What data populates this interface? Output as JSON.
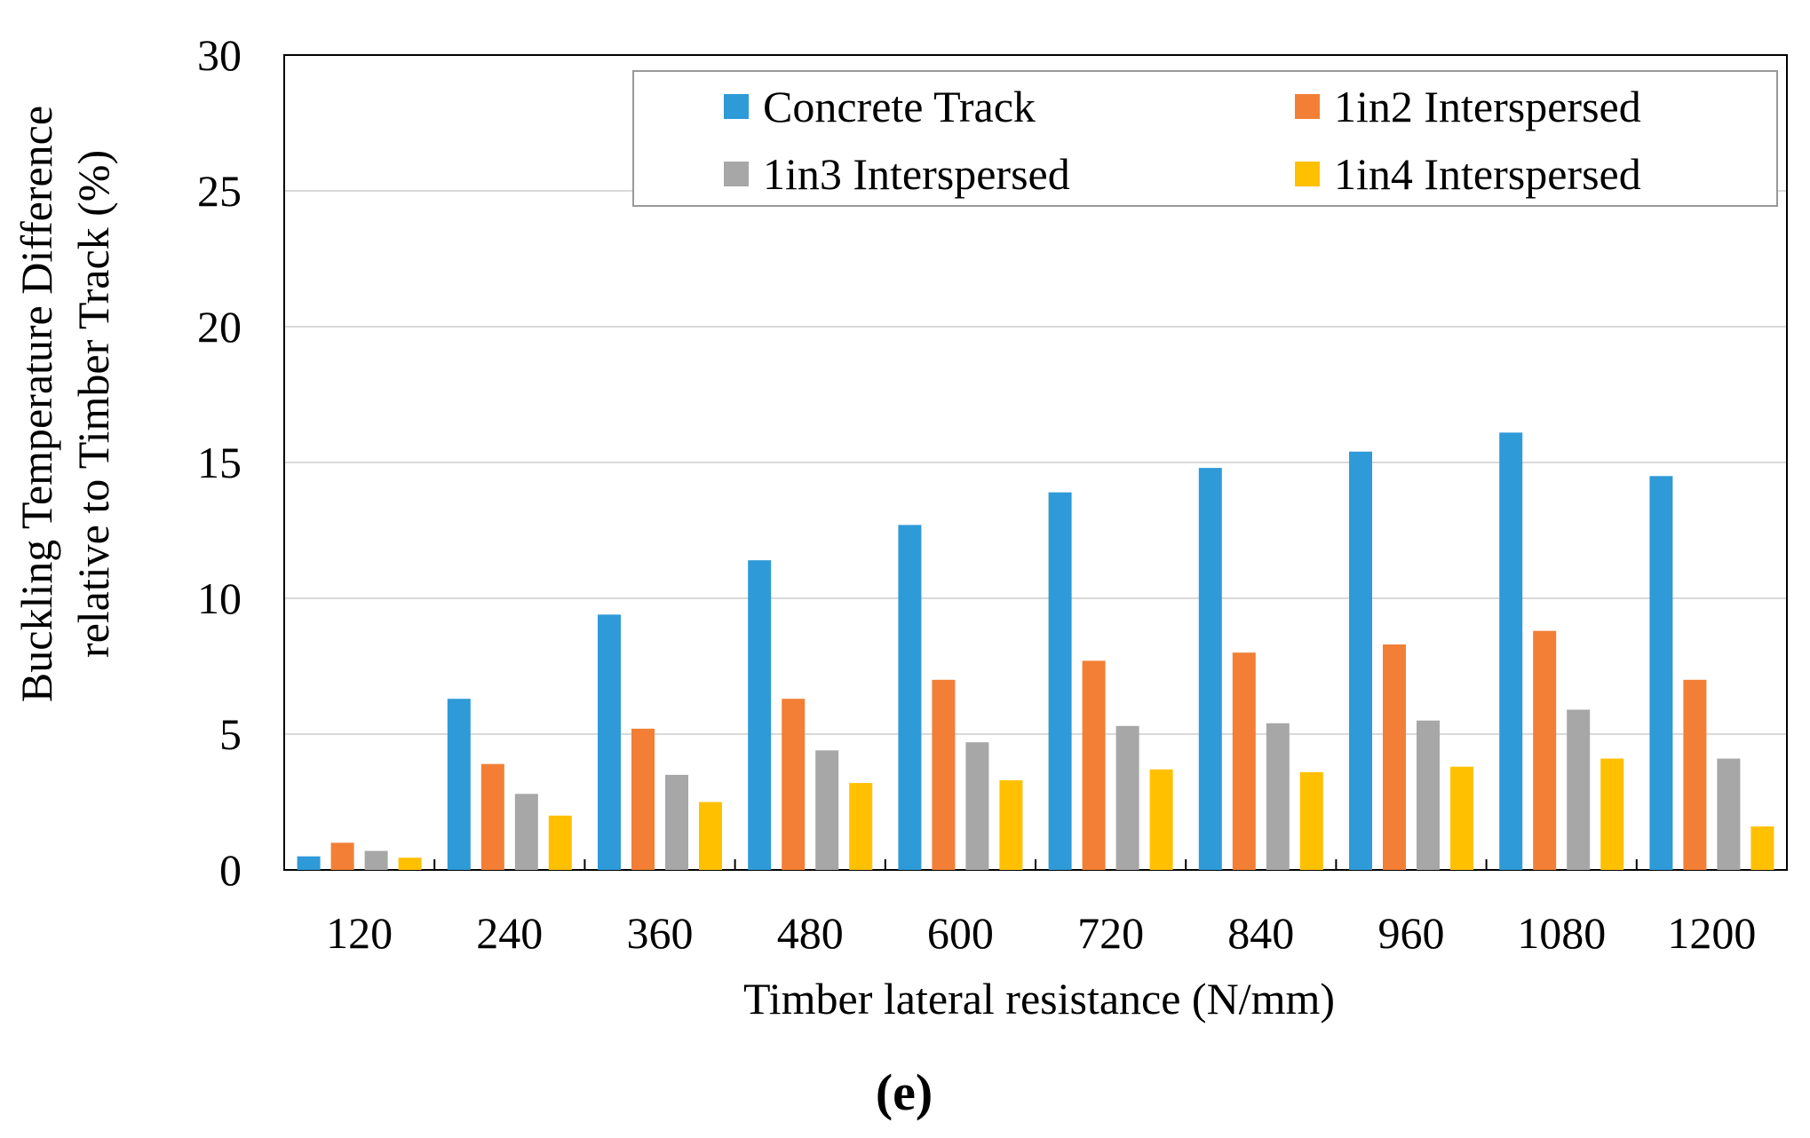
{
  "chart_data": {
    "type": "bar",
    "title": "",
    "xlabel": "Timber lateral resistance (N/mm)",
    "ylabel_line1": "Buckling Temperature Difference",
    "ylabel_line2": "relative to Timber Track (%)",
    "categories": [
      "120",
      "240",
      "360",
      "480",
      "600",
      "720",
      "840",
      "960",
      "1080",
      "1200"
    ],
    "ylim": [
      0,
      30
    ],
    "yticks": [
      0,
      5,
      10,
      15,
      20,
      25,
      30
    ],
    "ytick_labels": [
      "0",
      "5",
      "10",
      "15",
      "20",
      "25",
      "30"
    ],
    "grid": true,
    "legend_position": "top-right",
    "series": [
      {
        "name": "Concrete Track",
        "color": "#2E9AD8",
        "values": [
          0.5,
          6.3,
          9.4,
          11.4,
          12.7,
          13.9,
          14.8,
          15.4,
          16.1,
          14.5
        ]
      },
      {
        "name": "1in2 Interspersed",
        "color": "#F27F35",
        "values": [
          1.0,
          3.9,
          5.2,
          6.3,
          7.0,
          7.7,
          8.0,
          8.3,
          8.8,
          7.0
        ]
      },
      {
        "name": "1in3 Interspersed",
        "color": "#A7A7A7",
        "values": [
          0.7,
          2.8,
          3.5,
          4.4,
          4.7,
          5.3,
          5.4,
          5.5,
          5.9,
          4.1
        ]
      },
      {
        "name": "1in4 Interspersed",
        "color": "#FFC000",
        "values": [
          0.45,
          2.0,
          2.5,
          3.2,
          3.3,
          3.7,
          3.6,
          3.8,
          4.1,
          1.6
        ]
      }
    ],
    "caption": "(e)"
  }
}
